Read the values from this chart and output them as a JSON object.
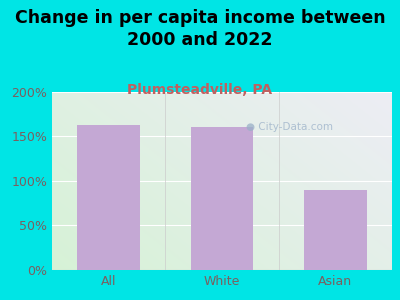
{
  "categories": [
    "All",
    "White",
    "Asian"
  ],
  "values": [
    163,
    160,
    90
  ],
  "bar_color": "#c4a8d4",
  "title": "Change in per capita income between\n2000 and 2022",
  "subtitle": "Plumsteadville, PA",
  "subtitle_color": "#c06060",
  "background_color": "#00e5e5",
  "ylim": [
    0,
    200
  ],
  "yticks": [
    0,
    50,
    100,
    150,
    200
  ],
  "ytick_labels": [
    "0%",
    "50%",
    "100%",
    "150%",
    "200%"
  ],
  "title_fontsize": 12.5,
  "subtitle_fontsize": 10,
  "watermark": "City-Data.com",
  "watermark_color": "#9ab0c8",
  "tick_label_color": "#7a6060",
  "tick_fontsize": 9
}
